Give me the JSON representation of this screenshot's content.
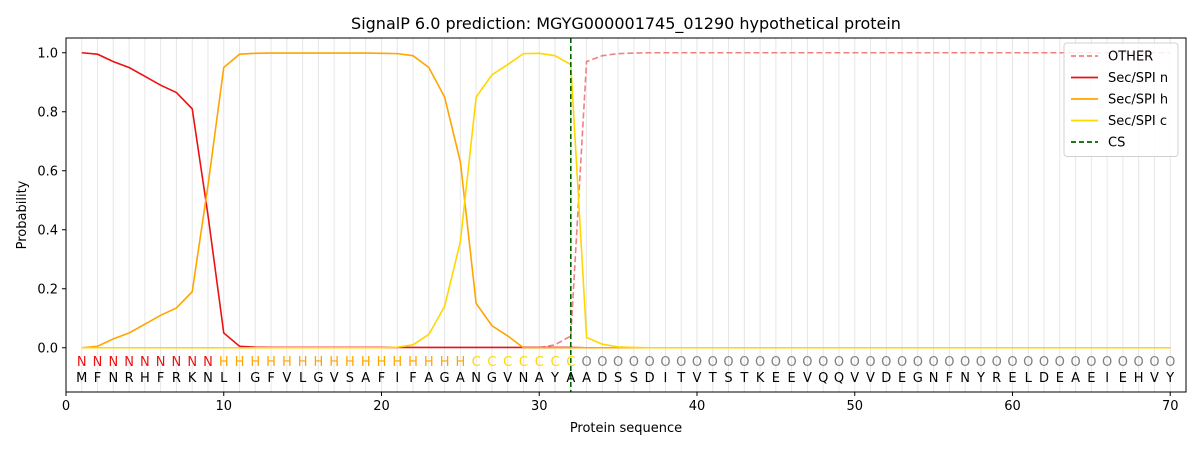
{
  "chart_data": {
    "type": "line",
    "title": "SignalP 6.0 prediction: MGYG000001745_01290 hypothetical protein",
    "xlabel": "Protein sequence",
    "ylabel": "Probability",
    "xlim": [
      0,
      71
    ],
    "ylim": [
      -0.15,
      1.05
    ],
    "xticks": [
      0,
      10,
      20,
      30,
      40,
      50,
      60,
      70
    ],
    "yticks": [
      0.0,
      0.2,
      0.4,
      0.6,
      0.8,
      1.0
    ],
    "grid": "vertical lines at each residue",
    "legend_position": "top-right",
    "sequence": [
      "M",
      "F",
      "N",
      "R",
      "H",
      "F",
      "R",
      "K",
      "N",
      "L",
      "I",
      "G",
      "F",
      "V",
      "L",
      "G",
      "V",
      "S",
      "A",
      "F",
      "I",
      "F",
      "A",
      "G",
      "A",
      "N",
      "G",
      "V",
      "N",
      "A",
      "Y",
      "A",
      "A",
      "D",
      "S",
      "S",
      "D",
      "I",
      "T",
      "V",
      "T",
      "S",
      "T",
      "K",
      "E",
      "E",
      "V",
      "Q",
      "Q",
      "V",
      "V",
      "D",
      "E",
      "G",
      "N",
      "F",
      "N",
      "Y",
      "R",
      "E",
      "L",
      "D",
      "E",
      "A",
      "E",
      "I",
      "E",
      "H",
      "V",
      "Y"
    ],
    "region_labels": [
      "N",
      "N",
      "N",
      "N",
      "N",
      "N",
      "N",
      "N",
      "N",
      "H",
      "H",
      "H",
      "H",
      "H",
      "H",
      "H",
      "H",
      "H",
      "H",
      "H",
      "H",
      "H",
      "H",
      "H",
      "H",
      "C",
      "C",
      "C",
      "C",
      "C",
      "C",
      "C",
      "O",
      "O",
      "O",
      "O",
      "O",
      "O",
      "O",
      "O",
      "O",
      "O",
      "O",
      "O",
      "O",
      "O",
      "O",
      "O",
      "O",
      "O",
      "O",
      "O",
      "O",
      "O",
      "O",
      "O",
      "O",
      "O",
      "O",
      "O",
      "O",
      "O",
      "O",
      "O",
      "O",
      "O",
      "O",
      "O",
      "O",
      "O"
    ],
    "region_colors": {
      "N": "#ee1111",
      "H": "#ffa500",
      "C": "#ffd700",
      "O": "#808080"
    },
    "cleavage_site": 32,
    "series": [
      {
        "name": "OTHER",
        "color": "#f08080",
        "dash": "dashed",
        "start": 30,
        "values": [
          0.0,
          0.01,
          0.04,
          0.97,
          0.99,
          0.997,
          0.999,
          1.0,
          1.0,
          1.0,
          1.0,
          1.0,
          1.0,
          1.0,
          1.0,
          1.0,
          1.0,
          1.0,
          1.0,
          1.0,
          1.0,
          1.0,
          1.0,
          1.0,
          1.0,
          1.0,
          1.0,
          1.0,
          1.0,
          1.0,
          1.0,
          1.0,
          1.0,
          1.0,
          1.0,
          1.0,
          1.0,
          1.0,
          1.0,
          1.0,
          1.0
        ]
      },
      {
        "name": "Sec/SPI n",
        "color": "#ee1111",
        "dash": "solid",
        "start": 1,
        "values": [
          1.0,
          0.995,
          0.97,
          0.95,
          0.92,
          0.89,
          0.865,
          0.81,
          0.45,
          0.05,
          0.005,
          0.002,
          0.001,
          0.001,
          0.001,
          0.001,
          0.001,
          0.001,
          0.001,
          0.001,
          0.001,
          0.001,
          0.001,
          0.001,
          0.001,
          0.001,
          0.001,
          0.001,
          0.001,
          0.001,
          0.001,
          0.001,
          0.0,
          0.0,
          0.0,
          0.0,
          0.0,
          0.0,
          0.0,
          0.0,
          0.0,
          0.0,
          0.0,
          0.0,
          0.0,
          0.0,
          0.0,
          0.0,
          0.0,
          0.0,
          0.0,
          0.0,
          0.0,
          0.0,
          0.0,
          0.0,
          0.0,
          0.0,
          0.0,
          0.0,
          0.0,
          0.0,
          0.0,
          0.0,
          0.0,
          0.0,
          0.0,
          0.0,
          0.0,
          0.0
        ]
      },
      {
        "name": "Sec/SPI h",
        "color": "#ffa500",
        "dash": "solid",
        "start": 1,
        "values": [
          0.0,
          0.005,
          0.03,
          0.05,
          0.08,
          0.11,
          0.135,
          0.19,
          0.55,
          0.95,
          0.995,
          0.998,
          0.999,
          0.999,
          0.999,
          0.999,
          0.999,
          0.999,
          0.999,
          0.998,
          0.997,
          0.99,
          0.95,
          0.85,
          0.63,
          0.15,
          0.075,
          0.04,
          0.0,
          0.0,
          0.0,
          0.0,
          0.0,
          0.0,
          0.0,
          0.0,
          0.0,
          0.0,
          0.0,
          0.0,
          0.0,
          0.0,
          0.0,
          0.0,
          0.0,
          0.0,
          0.0,
          0.0,
          0.0,
          0.0,
          0.0,
          0.0,
          0.0,
          0.0,
          0.0,
          0.0,
          0.0,
          0.0,
          0.0,
          0.0,
          0.0,
          0.0,
          0.0,
          0.0,
          0.0,
          0.0,
          0.0,
          0.0,
          0.0,
          0.0
        ]
      },
      {
        "name": "Sec/SPI c",
        "color": "#ffd700",
        "dash": "solid",
        "start": 1,
        "values": [
          0.0,
          0.0,
          0.0,
          0.0,
          0.0,
          0.0,
          0.0,
          0.0,
          0.0,
          0.0,
          0.0,
          0.0,
          0.0,
          0.0,
          0.0,
          0.0,
          0.0,
          0.0,
          0.0,
          0.0,
          0.002,
          0.01,
          0.045,
          0.14,
          0.36,
          0.85,
          0.925,
          0.96,
          0.997,
          0.998,
          0.99,
          0.96,
          0.035,
          0.012,
          0.003,
          0.001,
          0.0,
          0.0,
          0.0,
          0.0,
          0.0,
          0.0,
          0.0,
          0.0,
          0.0,
          0.0,
          0.0,
          0.0,
          0.0,
          0.0,
          0.0,
          0.0,
          0.0,
          0.0,
          0.0,
          0.0,
          0.0,
          0.0,
          0.0,
          0.0,
          0.0,
          0.0,
          0.0,
          0.0,
          0.0,
          0.0,
          0.0,
          0.0,
          0.0,
          0.0
        ]
      },
      {
        "name": "CS",
        "color": "#006400",
        "dash": "dashed",
        "type": "vline",
        "x": 32
      }
    ]
  }
}
